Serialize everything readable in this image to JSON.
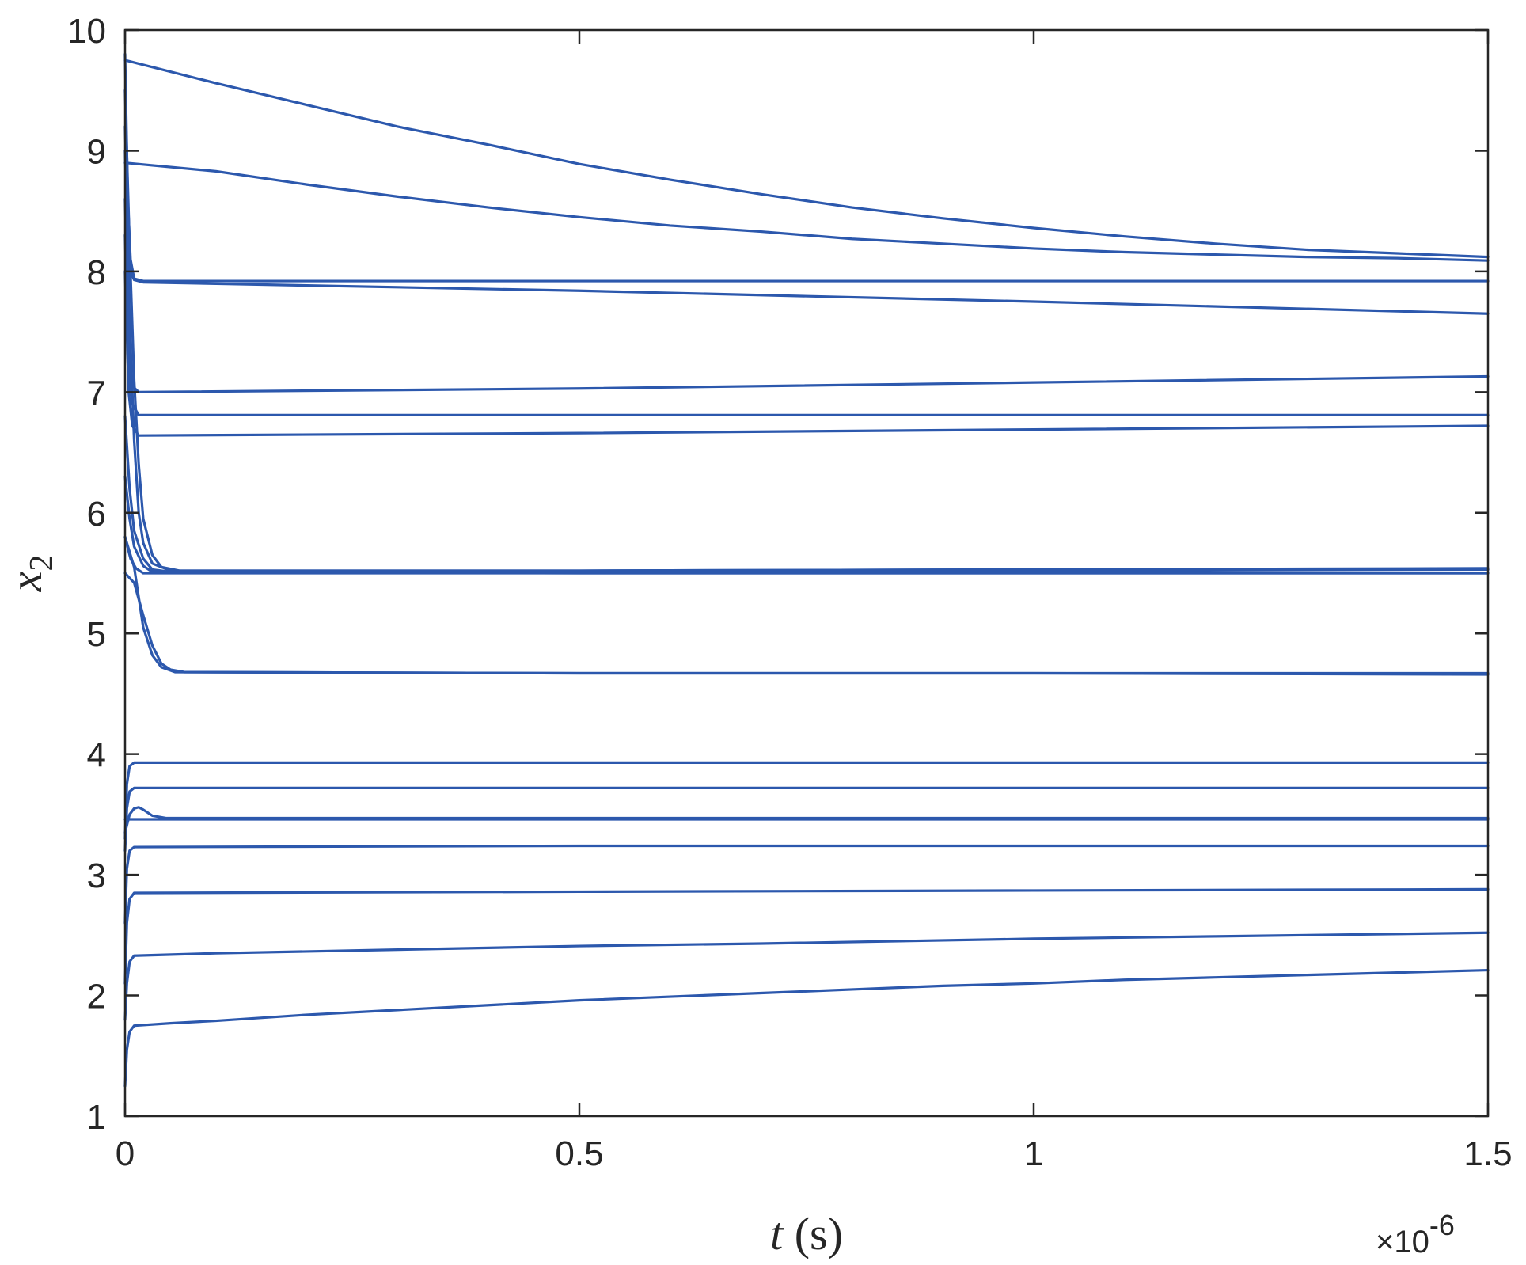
{
  "chart_data": {
    "type": "line",
    "xlabel_var": "t",
    "xlabel_unit": "(s)",
    "ylabel_var": "x",
    "ylabel_sub": "2",
    "x_multiplier_prefix": "×10",
    "x_multiplier_exp": "-6",
    "xlim": [
      0,
      1.5
    ],
    "ylim": [
      1,
      10
    ],
    "xticks": [
      0,
      0.5,
      1,
      1.5
    ],
    "xtick_labels": [
      "0",
      "0.5",
      "1",
      "1.5"
    ],
    "yticks": [
      1,
      2,
      3,
      4,
      5,
      6,
      7,
      8,
      9,
      10
    ],
    "ytick_labels": [
      "1",
      "2",
      "3",
      "4",
      "5",
      "6",
      "7",
      "8",
      "9",
      "10"
    ],
    "grid": false,
    "line_color": "#2c58ad",
    "series": [
      {
        "values": [
          [
            0,
            9.75
          ],
          [
            0.1,
            9.56
          ],
          [
            0.2,
            9.38
          ],
          [
            0.3,
            9.2
          ],
          [
            0.4,
            9.05
          ],
          [
            0.5,
            8.89
          ],
          [
            0.6,
            8.76
          ],
          [
            0.7,
            8.64
          ],
          [
            0.8,
            8.53
          ],
          [
            0.9,
            8.44
          ],
          [
            1.0,
            8.36
          ],
          [
            1.1,
            8.29
          ],
          [
            1.2,
            8.23
          ],
          [
            1.3,
            8.18
          ],
          [
            1.4,
            8.15
          ],
          [
            1.5,
            8.12
          ]
        ]
      },
      {
        "values": [
          [
            0,
            8.9
          ],
          [
            0.1,
            8.83
          ],
          [
            0.2,
            8.72
          ],
          [
            0.3,
            8.62
          ],
          [
            0.4,
            8.53
          ],
          [
            0.5,
            8.45
          ],
          [
            0.6,
            8.38
          ],
          [
            0.7,
            8.33
          ],
          [
            0.8,
            8.27
          ],
          [
            0.9,
            8.23
          ],
          [
            1.0,
            8.19
          ],
          [
            1.1,
            8.16
          ],
          [
            1.2,
            8.14
          ],
          [
            1.3,
            8.12
          ],
          [
            1.4,
            8.11
          ],
          [
            1.5,
            8.09
          ]
        ]
      },
      {
        "values": [
          [
            0,
            9.8
          ],
          [
            0.003,
            8.6
          ],
          [
            0.006,
            8.1
          ],
          [
            0.01,
            7.94
          ],
          [
            0.02,
            7.92
          ],
          [
            0.5,
            7.92
          ],
          [
            1.0,
            7.92
          ],
          [
            1.5,
            7.92
          ]
        ]
      },
      {
        "values": [
          [
            0,
            9.2
          ],
          [
            0.003,
            8.4
          ],
          [
            0.006,
            8.0
          ],
          [
            0.01,
            7.93
          ],
          [
            0.02,
            7.91
          ],
          [
            0.5,
            7.84
          ],
          [
            1.0,
            7.75
          ],
          [
            1.5,
            7.65
          ]
        ]
      },
      {
        "values": [
          [
            0,
            8.6
          ],
          [
            0.004,
            7.4
          ],
          [
            0.008,
            7.05
          ],
          [
            0.015,
            7.0
          ],
          [
            0.5,
            7.03
          ],
          [
            1.0,
            7.08
          ],
          [
            1.5,
            7.13
          ]
        ]
      },
      {
        "values": [
          [
            0,
            8.3
          ],
          [
            0.004,
            7.2
          ],
          [
            0.008,
            6.9
          ],
          [
            0.015,
            6.81
          ],
          [
            0.5,
            6.81
          ],
          [
            1.0,
            6.81
          ],
          [
            1.5,
            6.81
          ]
        ]
      },
      {
        "values": [
          [
            0,
            8.0
          ],
          [
            0.004,
            7.0
          ],
          [
            0.008,
            6.72
          ],
          [
            0.015,
            6.64
          ],
          [
            0.5,
            6.66
          ],
          [
            1.0,
            6.69
          ],
          [
            1.5,
            6.72
          ]
        ]
      },
      {
        "values": [
          [
            0,
            9.5
          ],
          [
            0.005,
            8.2
          ],
          [
            0.01,
            7.1
          ],
          [
            0.015,
            6.4
          ],
          [
            0.02,
            5.95
          ],
          [
            0.03,
            5.65
          ],
          [
            0.04,
            5.55
          ],
          [
            0.06,
            5.52
          ],
          [
            0.5,
            5.52
          ],
          [
            1.0,
            5.53
          ],
          [
            1.5,
            5.54
          ]
        ]
      },
      {
        "values": [
          [
            0,
            9.0
          ],
          [
            0.005,
            7.6
          ],
          [
            0.01,
            6.6
          ],
          [
            0.015,
            6.0
          ],
          [
            0.02,
            5.75
          ],
          [
            0.03,
            5.58
          ],
          [
            0.05,
            5.52
          ],
          [
            0.5,
            5.52
          ],
          [
            1.0,
            5.53
          ],
          [
            1.5,
            5.53
          ]
        ]
      },
      {
        "values": [
          [
            0,
            6.8
          ],
          [
            0.005,
            6.2
          ],
          [
            0.01,
            5.85
          ],
          [
            0.02,
            5.62
          ],
          [
            0.03,
            5.53
          ],
          [
            0.05,
            5.51
          ],
          [
            0.5,
            5.51
          ],
          [
            1.0,
            5.52
          ],
          [
            1.5,
            5.53
          ]
        ]
      },
      {
        "values": [
          [
            0,
            6.3
          ],
          [
            0.005,
            5.95
          ],
          [
            0.01,
            5.72
          ],
          [
            0.02,
            5.56
          ],
          [
            0.03,
            5.51
          ],
          [
            0.5,
            5.5
          ],
          [
            1.0,
            5.5
          ],
          [
            1.5,
            5.5
          ]
        ]
      },
      {
        "values": [
          [
            0,
            5.8
          ],
          [
            0.006,
            5.62
          ],
          [
            0.012,
            5.54
          ],
          [
            0.02,
            5.5
          ],
          [
            0.5,
            5.5
          ],
          [
            1.0,
            5.5
          ],
          [
            1.5,
            5.5
          ]
        ]
      },
      {
        "values": [
          [
            0,
            5.5
          ],
          [
            0.01,
            5.42
          ],
          [
            0.02,
            5.15
          ],
          [
            0.03,
            4.9
          ],
          [
            0.04,
            4.75
          ],
          [
            0.05,
            4.7
          ],
          [
            0.065,
            4.68
          ],
          [
            0.5,
            4.67
          ],
          [
            1.0,
            4.67
          ],
          [
            1.5,
            4.67
          ]
        ]
      },
      {
        "values": [
          [
            0,
            5.8
          ],
          [
            0.01,
            5.55
          ],
          [
            0.02,
            5.05
          ],
          [
            0.03,
            4.82
          ],
          [
            0.04,
            4.72
          ],
          [
            0.055,
            4.68
          ],
          [
            0.5,
            4.67
          ],
          [
            1.0,
            4.67
          ],
          [
            1.5,
            4.66
          ]
        ]
      },
      {
        "values": [
          [
            0,
            3.3
          ],
          [
            0.002,
            3.75
          ],
          [
            0.005,
            3.9
          ],
          [
            0.01,
            3.93
          ],
          [
            0.5,
            3.93
          ],
          [
            1.0,
            3.93
          ],
          [
            1.5,
            3.93
          ]
        ]
      },
      {
        "values": [
          [
            0,
            3.2
          ],
          [
            0.002,
            3.55
          ],
          [
            0.005,
            3.69
          ],
          [
            0.01,
            3.72
          ],
          [
            0.5,
            3.72
          ],
          [
            1.0,
            3.72
          ],
          [
            1.5,
            3.72
          ]
        ]
      },
      {
        "values": [
          [
            0,
            3.35
          ],
          [
            0.005,
            3.5
          ],
          [
            0.01,
            3.55
          ],
          [
            0.015,
            3.56
          ],
          [
            0.02,
            3.54
          ],
          [
            0.03,
            3.49
          ],
          [
            0.045,
            3.47
          ],
          [
            0.5,
            3.47
          ],
          [
            1.0,
            3.47
          ],
          [
            1.5,
            3.47
          ]
        ]
      },
      {
        "values": [
          [
            0,
            3.46
          ],
          [
            0.5,
            3.46
          ],
          [
            1.0,
            3.46
          ],
          [
            1.5,
            3.46
          ]
        ]
      },
      {
        "values": [
          [
            0,
            2.6
          ],
          [
            0.002,
            3.05
          ],
          [
            0.005,
            3.2
          ],
          [
            0.01,
            3.23
          ],
          [
            0.5,
            3.24
          ],
          [
            1.0,
            3.24
          ],
          [
            1.5,
            3.24
          ]
        ]
      },
      {
        "values": [
          [
            0,
            2.1
          ],
          [
            0.002,
            2.6
          ],
          [
            0.005,
            2.8
          ],
          [
            0.01,
            2.85
          ],
          [
            0.5,
            2.86
          ],
          [
            1.0,
            2.87
          ],
          [
            1.5,
            2.88
          ]
        ]
      },
      {
        "values": [
          [
            0,
            1.8
          ],
          [
            0.002,
            2.1
          ],
          [
            0.005,
            2.28
          ],
          [
            0.01,
            2.33
          ],
          [
            0.1,
            2.35
          ],
          [
            0.3,
            2.38
          ],
          [
            0.5,
            2.41
          ],
          [
            0.7,
            2.43
          ],
          [
            1.0,
            2.47
          ],
          [
            1.2,
            2.49
          ],
          [
            1.5,
            2.52
          ]
        ]
      },
      {
        "values": [
          [
            0,
            1.25
          ],
          [
            0.002,
            1.55
          ],
          [
            0.005,
            1.7
          ],
          [
            0.01,
            1.75
          ],
          [
            0.05,
            1.77
          ],
          [
            0.1,
            1.79
          ],
          [
            0.2,
            1.84
          ],
          [
            0.3,
            1.88
          ],
          [
            0.4,
            1.92
          ],
          [
            0.5,
            1.96
          ],
          [
            0.6,
            1.99
          ],
          [
            0.7,
            2.02
          ],
          [
            0.8,
            2.05
          ],
          [
            0.9,
            2.08
          ],
          [
            1.0,
            2.1
          ],
          [
            1.1,
            2.13
          ],
          [
            1.2,
            2.15
          ],
          [
            1.3,
            2.17
          ],
          [
            1.4,
            2.19
          ],
          [
            1.5,
            2.21
          ]
        ]
      }
    ]
  }
}
